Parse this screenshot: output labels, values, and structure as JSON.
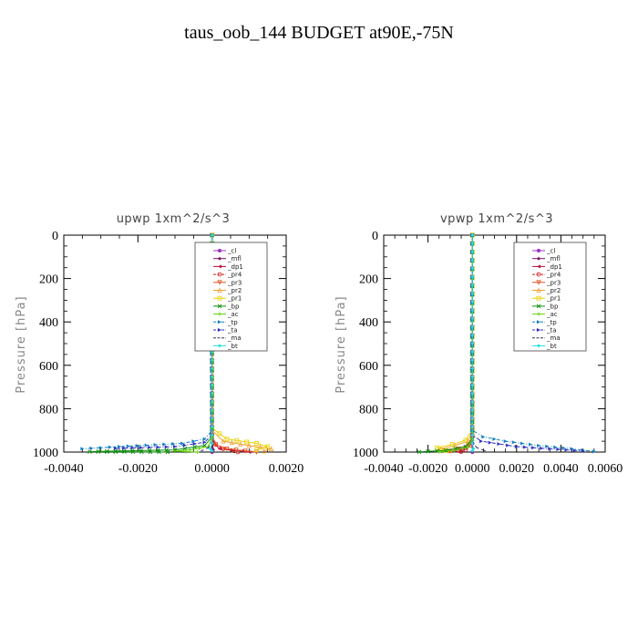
{
  "title": "taus_oob_144  BUDGET at90E,-75N",
  "legend_entries": [
    "_cl",
    "_mfl",
    "_dp1",
    "_pr4",
    "_pr3",
    "_pr2",
    "_pr1",
    "_bp",
    "_ac",
    "_tp",
    "_ta",
    "_ma",
    "_bt"
  ],
  "colors": {
    "_cl": "#9b30c8",
    "_mfl": "#7a1060",
    "_dp1": "#c0103a",
    "_pr4": "#d01818",
    "_pr3": "#e05020",
    "_pr2": "#f0a030",
    "_pr1": "#e8d000",
    "_bp": "#109010",
    "_ac": "#60d000",
    "_tp": "#1080c0",
    "_ta": "#3030c0",
    "_ma": "#303060",
    "_bt": "#20e0e0"
  },
  "chart_data": [
    {
      "type": "line",
      "title": "upwp   1xm^2/s^3",
      "ylabel": "Pressure  [hPa]",
      "xlim": [
        -0.004,
        0.002
      ],
      "ylim": [
        1000,
        0
      ],
      "x_ticks": [
        "-0.0040",
        "-0.0020",
        "0.0000",
        "0.0020"
      ],
      "x_tick_values": [
        -0.004,
        -0.002,
        0.0,
        0.002
      ],
      "y_ticks": [
        "0",
        "200",
        "400",
        "600",
        "800",
        "1000"
      ],
      "y_tick_values": [
        0,
        200,
        400,
        600,
        800,
        1000
      ],
      "legend_position": "upper-right",
      "series": [
        {
          "name": "_cl",
          "points": [
            [
              0,
              0
            ],
            [
              0,
              900
            ],
            [
              1e-05,
              960
            ],
            [
              2e-05,
              990
            ],
            [
              0,
              1000
            ]
          ]
        },
        {
          "name": "_mfl",
          "points": [
            [
              0,
              0
            ],
            [
              0,
              900
            ],
            [
              2e-05,
              960
            ],
            [
              3e-05,
              990
            ],
            [
              0,
              1000
            ]
          ]
        },
        {
          "name": "_dp1",
          "points": [
            [
              0,
              0
            ],
            [
              0,
              900
            ],
            [
              5e-05,
              960
            ],
            [
              0.0002,
              985
            ],
            [
              0.0008,
              995
            ],
            [
              0.001,
              1000
            ]
          ]
        },
        {
          "name": "_pr4",
          "points": [
            [
              0,
              0
            ],
            [
              0,
              920
            ],
            [
              0.0001,
              965
            ],
            [
              0.0003,
              985
            ],
            [
              0.0006,
              995
            ],
            [
              0.0007,
              1000
            ]
          ]
        },
        {
          "name": "_pr3",
          "points": [
            [
              0,
              0
            ],
            [
              0,
              930
            ],
            [
              0.0001,
              965
            ],
            [
              0.0004,
              985
            ],
            [
              0.0009,
              995
            ],
            [
              0.0012,
              1000
            ]
          ]
        },
        {
          "name": "_pr2",
          "points": [
            [
              0,
              0
            ],
            [
              0,
              900
            ],
            [
              0.0003,
              950
            ],
            [
              0.001,
              970
            ],
            [
              0.0016,
              985
            ],
            [
              0.0014,
              995
            ]
          ]
        },
        {
          "name": "_pr1",
          "points": [
            [
              0,
              0
            ],
            [
              0,
              890
            ],
            [
              0.0004,
              940
            ],
            [
              0.0012,
              960
            ],
            [
              0.0015,
              975
            ],
            [
              0.0012,
              990
            ]
          ]
        },
        {
          "name": "_bp",
          "points": [
            [
              0,
              0
            ],
            [
              0,
              930
            ],
            [
              -0.0002,
              970
            ],
            [
              -0.001,
              990
            ],
            [
              -0.0033,
              998
            ],
            [
              -0.0012,
              1000
            ]
          ]
        },
        {
          "name": "_ac",
          "points": [
            [
              0,
              0
            ],
            [
              0,
              930
            ],
            [
              -0.0001,
              975
            ],
            [
              -0.0006,
              990
            ],
            [
              -0.001,
              996
            ],
            [
              -0.0004,
              1000
            ]
          ]
        },
        {
          "name": "_tp",
          "points": [
            [
              0,
              0
            ],
            [
              0,
              900
            ],
            [
              -0.0002,
              940
            ],
            [
              -0.0008,
              960
            ],
            [
              -0.0025,
              975
            ],
            [
              -0.0035,
              985
            ]
          ]
        },
        {
          "name": "_ta",
          "points": [
            [
              0,
              0
            ],
            [
              0,
              920
            ],
            [
              -0.0002,
              955
            ],
            [
              -0.001,
              975
            ],
            [
              -0.0026,
              983
            ]
          ]
        },
        {
          "name": "_ma",
          "points": [
            [
              0,
              0
            ],
            [
              0,
              950
            ],
            [
              -0.0001,
              980
            ],
            [
              -0.0003,
              995
            ]
          ]
        },
        {
          "name": "_bt",
          "points": [
            [
              0,
              0
            ],
            [
              0,
              960
            ],
            [
              -5e-05,
              985
            ],
            [
              0,
              995
            ]
          ]
        }
      ]
    },
    {
      "type": "line",
      "title": "vpwp   1xm^2/s^3",
      "ylabel": "Pressure  [hPa]",
      "xlim": [
        -0.004,
        0.006
      ],
      "ylim": [
        1000,
        0
      ],
      "x_ticks": [
        "-0.0040",
        "-0.0020",
        "0.0000",
        "0.0020",
        "0.0040",
        "0.0060"
      ],
      "x_tick_values": [
        -0.004,
        -0.002,
        0.0,
        0.002,
        0.004,
        0.006
      ],
      "y_ticks": [
        "0",
        "200",
        "400",
        "600",
        "800",
        "1000"
      ],
      "y_tick_values": [
        0,
        200,
        400,
        600,
        800,
        1000
      ],
      "legend_position": "upper-right",
      "series": [
        {
          "name": "_cl",
          "points": [
            [
              0,
              0
            ],
            [
              0,
              900
            ],
            [
              1e-05,
              960
            ],
            [
              0,
              1000
            ]
          ]
        },
        {
          "name": "_mfl",
          "points": [
            [
              0,
              0
            ],
            [
              0,
              900
            ],
            [
              2e-05,
              960
            ],
            [
              0,
              1000
            ]
          ]
        },
        {
          "name": "_dp1",
          "points": [
            [
              0,
              0
            ],
            [
              0,
              920
            ],
            [
              -0.0001,
              960
            ],
            [
              -0.0004,
              985
            ],
            [
              -0.0008,
              995
            ],
            [
              -0.0006,
              1000
            ]
          ]
        },
        {
          "name": "_pr4",
          "points": [
            [
              0,
              0
            ],
            [
              0,
              930
            ],
            [
              -0.0001,
              970
            ],
            [
              -0.0003,
              990
            ],
            [
              -0.0005,
              998
            ]
          ]
        },
        {
          "name": "_pr3",
          "points": [
            [
              0,
              0
            ],
            [
              0,
              930
            ],
            [
              -0.0002,
              965
            ],
            [
              -0.0006,
              985
            ],
            [
              -0.001,
              995
            ]
          ]
        },
        {
          "name": "_pr2",
          "points": [
            [
              0,
              0
            ],
            [
              0,
              910
            ],
            [
              -0.0002,
              950
            ],
            [
              -0.0008,
              970
            ],
            [
              -0.0014,
              985
            ],
            [
              -0.001,
              995
            ]
          ]
        },
        {
          "name": "_pr1",
          "points": [
            [
              0,
              0
            ],
            [
              0,
              900
            ],
            [
              -0.0003,
              945
            ],
            [
              -0.0009,
              965
            ],
            [
              -0.0016,
              980
            ],
            [
              -0.0012,
              993
            ]
          ]
        },
        {
          "name": "_bp",
          "points": [
            [
              0,
              0
            ],
            [
              0,
              940
            ],
            [
              -0.0003,
              975
            ],
            [
              -0.0012,
              992
            ],
            [
              -0.0024,
              999
            ]
          ]
        },
        {
          "name": "_ac",
          "points": [
            [
              0,
              0
            ],
            [
              0,
              940
            ],
            [
              -0.0002,
              978
            ],
            [
              -0.0008,
              993
            ],
            [
              -0.0015,
              999
            ]
          ]
        },
        {
          "name": "_tp",
          "points": [
            [
              0,
              0
            ],
            [
              0,
              900
            ],
            [
              0.0005,
              930
            ],
            [
              0.0015,
              950
            ],
            [
              0.003,
              970
            ],
            [
              0.0045,
              985
            ],
            [
              0.0055,
              998
            ]
          ]
        },
        {
          "name": "_ta",
          "points": [
            [
              0,
              0
            ],
            [
              0,
              920
            ],
            [
              0.0004,
              950
            ],
            [
              0.002,
              975
            ],
            [
              0.005,
              995
            ]
          ]
        },
        {
          "name": "_ma",
          "points": [
            [
              0,
              0
            ],
            [
              0,
              950
            ],
            [
              0.0002,
              980
            ],
            [
              0.0006,
              995
            ]
          ]
        },
        {
          "name": "_bt",
          "points": [
            [
              0,
              0
            ],
            [
              0,
              960
            ],
            [
              5e-05,
              985
            ],
            [
              0,
              995
            ]
          ]
        }
      ]
    }
  ]
}
